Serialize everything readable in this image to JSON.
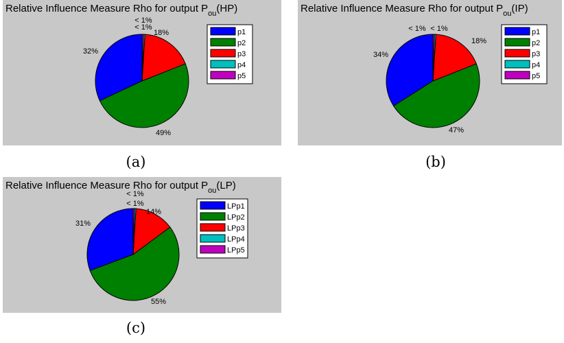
{
  "chart_data": [
    {
      "type": "pie",
      "title_main": "Relative Influence Measure Rho for output P",
      "title_sub": "ou",
      "title_tail": "(HP)",
      "caption": "(a)",
      "labels": [
        "p1",
        "p2",
        "p3",
        "p4",
        "p5"
      ],
      "values": [
        32,
        49,
        18,
        0.5,
        0.5
      ],
      "value_labels": [
        "32%",
        "49%",
        "18%",
        "< 1%",
        "< 1%"
      ],
      "colors": [
        "#0000ff",
        "#008000",
        "#ff0000",
        "#00bfbf",
        "#bf00bf"
      ],
      "legend": "right"
    },
    {
      "type": "pie",
      "title_main": "Relative Influence Measure Rho for output P",
      "title_sub": "ou",
      "title_tail": "(IP)",
      "caption": "(b)",
      "labels": [
        "p1",
        "p2",
        "p3",
        "p4",
        "p5"
      ],
      "values": [
        34,
        47,
        18,
        0.5,
        0.5
      ],
      "value_labels": [
        "34%",
        "47%",
        "18%",
        "< 1%",
        "< 1%"
      ],
      "colors": [
        "#0000ff",
        "#008000",
        "#ff0000",
        "#00bfbf",
        "#bf00bf"
      ],
      "legend": "right"
    },
    {
      "type": "pie",
      "title_main": "Relative Influence Measure Rho  for output P",
      "title_sub": "ou",
      "title_tail": "(LP)",
      "caption": "(c)",
      "labels": [
        "LPp1",
        "LPp2",
        "LPp3",
        "LPp4",
        "LPp5"
      ],
      "values": [
        31,
        55,
        14,
        0.5,
        0.5
      ],
      "value_labels": [
        "31%",
        "55%",
        "14%",
        "< 1%",
        "< 1%"
      ],
      "colors": [
        "#0000ff",
        "#008000",
        "#ff0000",
        "#00bfbf",
        "#bf00bf"
      ],
      "legend": "right"
    }
  ]
}
